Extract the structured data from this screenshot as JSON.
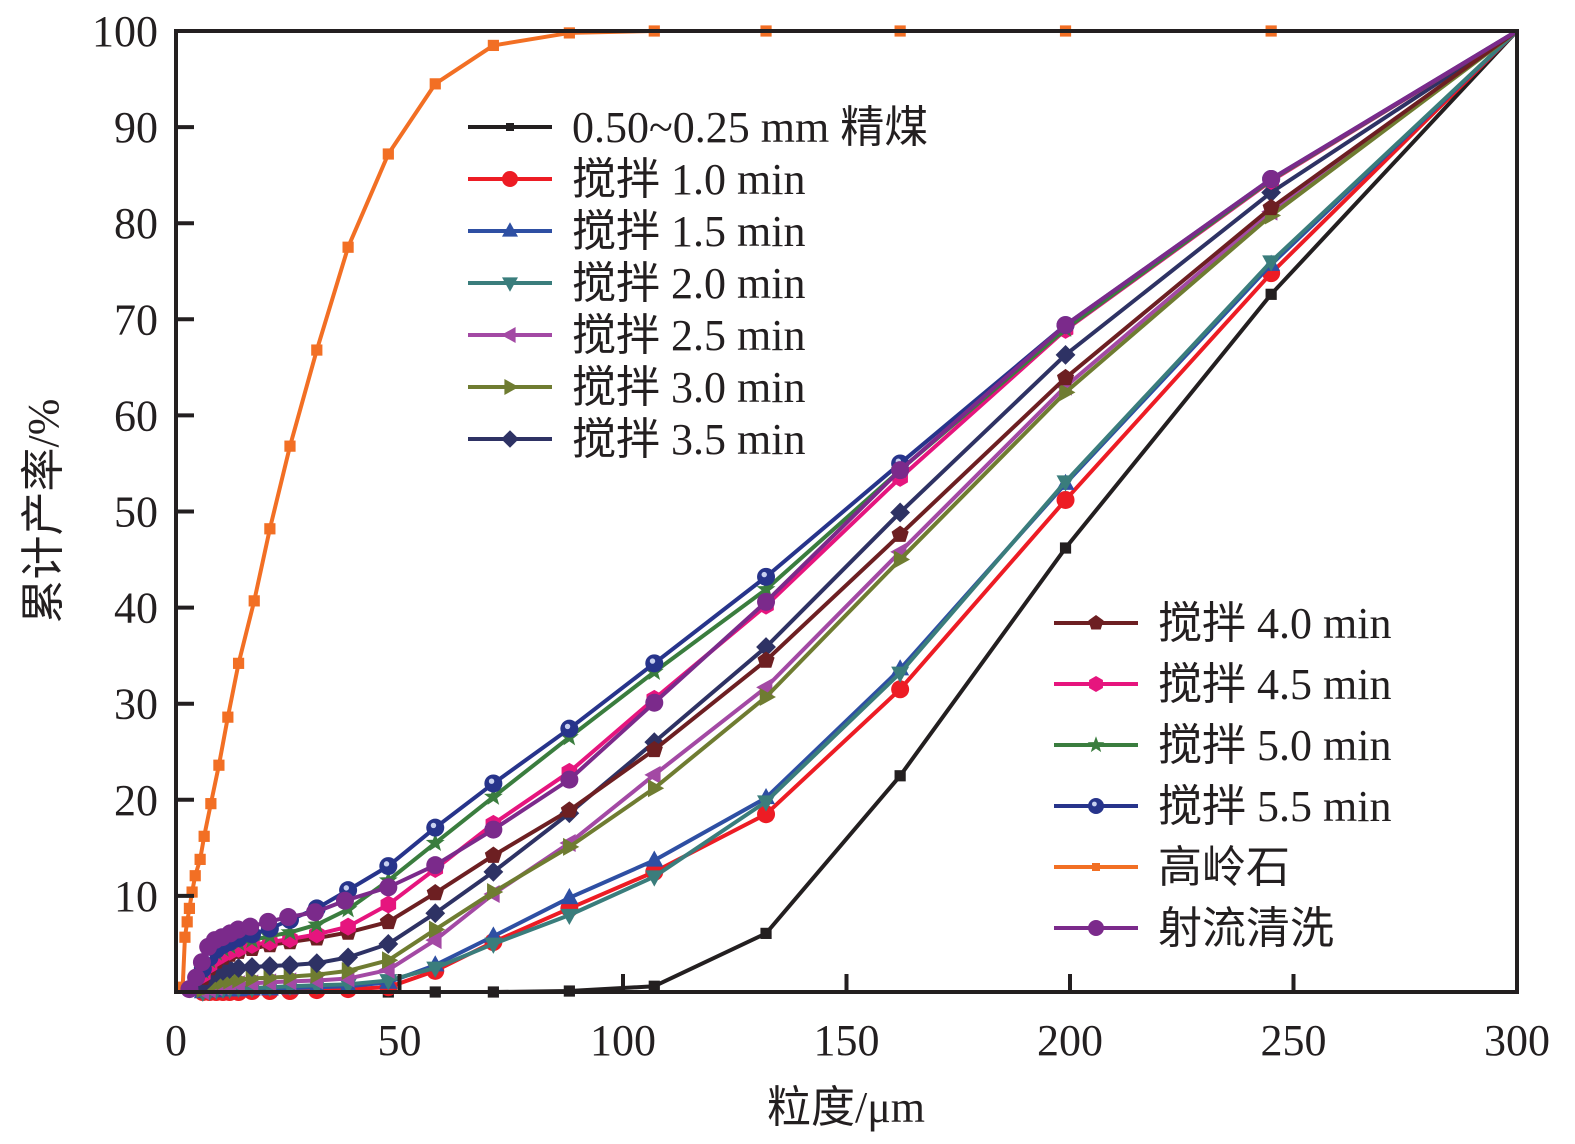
{
  "chart_data": {
    "type": "line",
    "title": "",
    "xlabel": "粒度/μm",
    "ylabel": "累计产率/%",
    "xlim": [
      0,
      300
    ],
    "ylim": [
      0,
      100
    ],
    "xticks": [
      0,
      50,
      100,
      150,
      200,
      250,
      300
    ],
    "yticks": [
      10,
      20,
      30,
      40,
      50,
      60,
      70,
      80,
      90,
      100
    ],
    "xtick_labels": [
      "0",
      "50",
      "100",
      "150",
      "200",
      "250",
      "300"
    ],
    "ytick_labels": [
      "10",
      "20",
      "30",
      "40",
      "50",
      "60",
      "70",
      "80",
      "90",
      "100"
    ],
    "grid": false,
    "legend": [
      {
        "placement": "upper-center",
        "entries": [
          0,
          1,
          2,
          3,
          4,
          5,
          6
        ]
      },
      {
        "placement": "lower-right",
        "entries": [
          7,
          8,
          9,
          10,
          11,
          12
        ]
      }
    ],
    "series": [
      {
        "name": "0.50~0.25 mm 精煤",
        "color": "#231f20",
        "marker": "square",
        "x": [
          47.5,
          58,
          71,
          88,
          107,
          132,
          162,
          199,
          245,
          300
        ],
        "y": [
          0,
          0,
          0,
          0.1,
          0.6,
          6.1,
          22.5,
          46.2,
          72.6,
          100
        ]
      },
      {
        "name": "搅拌 1.0  min",
        "color": "#ed1c24",
        "marker": "circle",
        "x": [
          6,
          7.5,
          9,
          10.5,
          12,
          14,
          17,
          21,
          25.5,
          31.5,
          38.5,
          47.5,
          58,
          71,
          88,
          107,
          132,
          162,
          199,
          245,
          300
        ],
        "y": [
          0,
          0,
          0,
          0,
          0,
          0,
          0.1,
          0.1,
          0.1,
          0.2,
          0.3,
          0.5,
          2.2,
          5.2,
          8.7,
          12.5,
          18.5,
          31.5,
          51.2,
          74.8,
          100
        ]
      },
      {
        "name": "搅拌 1.5  min",
        "color": "#2e4fa3",
        "marker": "triangle-up",
        "x": [
          6,
          7.5,
          9,
          10.5,
          12,
          14,
          17,
          21,
          25.5,
          31.5,
          38.5,
          47.5,
          58,
          71,
          88,
          107,
          132,
          162,
          199,
          245,
          300
        ],
        "y": [
          0,
          0.1,
          0.1,
          0.2,
          0.2,
          0.2,
          0.3,
          0.3,
          0.4,
          0.5,
          0.6,
          1.0,
          2.8,
          5.8,
          9.8,
          13.7,
          20.2,
          33.6,
          52.9,
          75.7,
          100
        ]
      },
      {
        "name": "搅拌 2.0  min",
        "color": "#3a7d7c",
        "marker": "triangle-down",
        "x": [
          6,
          7.5,
          9,
          10.5,
          12,
          14,
          17,
          21,
          25.5,
          31.5,
          38.5,
          47.5,
          58,
          71,
          88,
          107,
          132,
          162,
          199,
          245,
          300
        ],
        "y": [
          0,
          0.1,
          0.2,
          0.3,
          0.3,
          0.4,
          0.4,
          0.5,
          0.6,
          0.7,
          0.8,
          1.2,
          2.5,
          5.0,
          8.0,
          12.0,
          19.8,
          33.2,
          53.1,
          76.0,
          100
        ]
      },
      {
        "name": "搅拌 2.5  min",
        "color": "#a349a4",
        "marker": "triangle-left",
        "x": [
          6,
          7.5,
          9,
          10.5,
          12,
          14,
          17,
          21,
          25.5,
          31.5,
          38.5,
          47.5,
          58,
          71,
          88,
          107,
          132,
          162,
          199,
          245,
          300
        ],
        "y": [
          0.1,
          0.3,
          0.5,
          0.6,
          0.7,
          0.8,
          0.9,
          1.0,
          1.1,
          1.2,
          1.4,
          2.3,
          5.4,
          10.2,
          15.5,
          22.6,
          31.7,
          45.8,
          63.0,
          81.2,
          100
        ]
      },
      {
        "name": "搅拌 3.0  min",
        "color": "#6f7c31",
        "marker": "triangle-right",
        "x": [
          6,
          7.5,
          9,
          10.5,
          12,
          14,
          17,
          21,
          25.5,
          31.5,
          38.5,
          47.5,
          58,
          71,
          88,
          107,
          132,
          162,
          199,
          245,
          300
        ],
        "y": [
          0.3,
          0.6,
          0.9,
          1.1,
          1.2,
          1.3,
          1.4,
          1.5,
          1.6,
          1.8,
          2.2,
          3.3,
          6.5,
          10.4,
          15.1,
          21.2,
          30.7,
          45.0,
          62.4,
          80.8,
          100
        ]
      },
      {
        "name": "搅拌 3.5  min",
        "color": "#2e3264",
        "marker": "diamond",
        "x": [
          6,
          7.5,
          9,
          10.5,
          12,
          14,
          17,
          21,
          25.5,
          31.5,
          38.5,
          47.5,
          58,
          71,
          88,
          107,
          132,
          162,
          199,
          245,
          300
        ],
        "y": [
          0.8,
          1.5,
          2.0,
          2.2,
          2.4,
          2.5,
          2.6,
          2.7,
          2.8,
          3.0,
          3.6,
          5.0,
          8.2,
          12.5,
          18.6,
          26.0,
          35.9,
          49.9,
          66.3,
          83.2,
          100
        ]
      },
      {
        "name": "搅拌 4.0  min",
        "color": "#6d1f22",
        "marker": "pentagon",
        "x": [
          6,
          7.5,
          9,
          10.5,
          12,
          14,
          17,
          21,
          25.5,
          31.5,
          38.5,
          47.5,
          58,
          71,
          88,
          107,
          132,
          162,
          199,
          245,
          300
        ],
        "y": [
          1.5,
          2.5,
          3.2,
          3.6,
          3.9,
          4.2,
          4.5,
          4.9,
          5.2,
          5.6,
          6.2,
          7.3,
          10.3,
          14.2,
          18.9,
          25.2,
          34.5,
          47.6,
          63.9,
          81.6,
          100
        ]
      },
      {
        "name": "搅拌 4.5  min",
        "color": "#e6157e",
        "marker": "hexagon",
        "x": [
          6,
          7.5,
          9,
          10.5,
          12,
          14,
          17,
          21,
          25.5,
          31.5,
          38.5,
          47.5,
          58,
          71,
          88,
          107,
          132,
          162,
          199,
          245,
          300
        ],
        "y": [
          1.8,
          2.8,
          3.5,
          3.9,
          4.2,
          4.5,
          4.9,
          5.2,
          5.5,
          6.0,
          6.8,
          9.1,
          12.8,
          17.5,
          22.9,
          30.5,
          40.2,
          53.5,
          68.9,
          84.4,
          100
        ]
      },
      {
        "name": "搅拌 5.0  min",
        "color": "#3a7d3e",
        "marker": "star",
        "x": [
          6,
          7.5,
          9,
          10.5,
          12,
          14,
          17,
          21,
          25.5,
          31.5,
          38.5,
          47.5,
          58,
          71,
          88,
          107,
          132,
          162,
          199,
          245,
          300
        ],
        "y": [
          2.2,
          3.3,
          4.1,
          4.5,
          4.8,
          5.1,
          5.4,
          5.8,
          6.2,
          7.0,
          8.6,
          11.6,
          15.5,
          20.3,
          26.5,
          33.3,
          41.9,
          54.3,
          69.0,
          84.5,
          100
        ]
      },
      {
        "name": "搅拌 5.5  min",
        "color": "#27348b",
        "marker": "sphere",
        "x": [
          6,
          7.5,
          9,
          10.5,
          12,
          14,
          17,
          21,
          25.5,
          31.5,
          38.5,
          47.5,
          58,
          71,
          88,
          107,
          132,
          162,
          199,
          245,
          300
        ],
        "y": [
          2.4,
          3.6,
          4.4,
          4.9,
          5.2,
          5.6,
          6.0,
          6.6,
          7.5,
          8.7,
          10.6,
          13.1,
          17.1,
          21.7,
          27.4,
          34.2,
          43.2,
          55.0,
          69.4,
          84.6,
          100
        ]
      },
      {
        "name": "高岭石",
        "color": "#f26f24",
        "marker": "square",
        "x": [
          1.5,
          2,
          2.5,
          3,
          3.6,
          4.3,
          5.4,
          6.3,
          7.8,
          9.6,
          11.6,
          14,
          17.5,
          21,
          25.5,
          31.5,
          38.5,
          47.5,
          58,
          71,
          88,
          107,
          132,
          162,
          199,
          245,
          300
        ],
        "y": [
          0.5,
          5.7,
          7.3,
          8.7,
          10.4,
          12.1,
          13.8,
          16.2,
          19.6,
          23.6,
          28.6,
          34.2,
          40.7,
          48.2,
          56.8,
          66.8,
          77.5,
          87.2,
          94.5,
          98.5,
          99.8,
          100,
          100,
          100,
          100,
          100,
          100
        ]
      },
      {
        "name": "射流清洗",
        "color": "#7b2a8b",
        "marker": "circle",
        "x": [
          3,
          4.5,
          5.8,
          7.2,
          8.7,
          10.3,
          12.1,
          13.9,
          16.6,
          20.6,
          25.1,
          31.1,
          37.8,
          47.5,
          58,
          71,
          88,
          107,
          132,
          162,
          199,
          245,
          300
        ],
        "y": [
          0.3,
          1.5,
          3.1,
          4.7,
          5.4,
          5.7,
          6.1,
          6.5,
          6.8,
          7.3,
          7.8,
          8.3,
          9.5,
          10.9,
          13.2,
          16.9,
          22.1,
          30.1,
          40.6,
          54.3,
          69.4,
          84.6,
          100
        ]
      }
    ]
  }
}
